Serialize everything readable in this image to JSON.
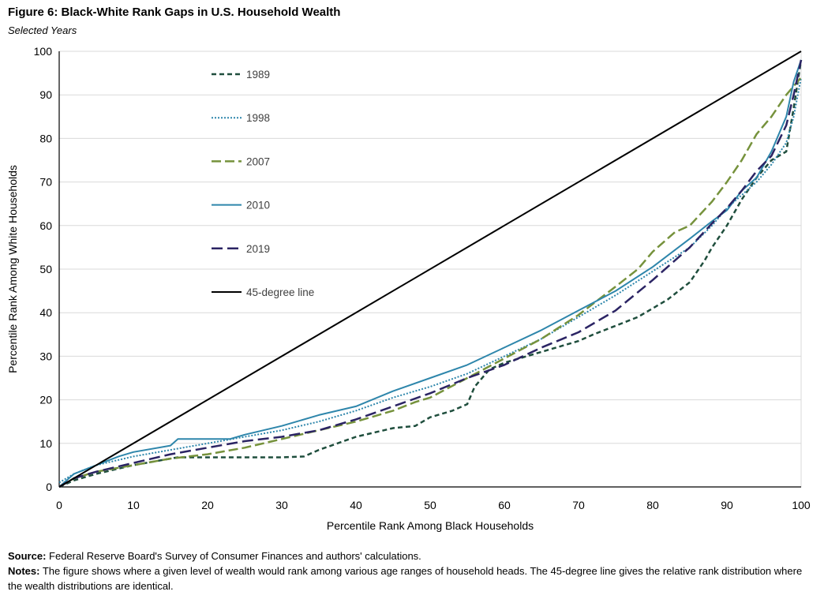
{
  "title": "Figure 6: Black-White Rank Gaps in U.S. Household Wealth",
  "subtitle": "Selected Years",
  "source_label": "Source:",
  "source_text": "Federal Reserve Board's Survey of Consumer Finances and authors' calculations.",
  "notes_label": "Notes:",
  "notes_text": "The figure shows where a given level of wealth would rank among various age ranges of household heads. The 45-degree line gives the relative rank distribution where the wealth distributions are identical.",
  "chart_data": {
    "type": "line",
    "xlabel": "Percentile Rank Among Black Households",
    "ylabel": "Percentile Rank Among White Households",
    "xlim": [
      0,
      100
    ],
    "ylim": [
      0,
      100
    ],
    "xticks": [
      "0",
      "10",
      "20",
      "30",
      "40",
      "50",
      "60",
      "70",
      "80",
      "90",
      "100"
    ],
    "yticks": [
      "0",
      "10",
      "20",
      "30",
      "40",
      "50",
      "60",
      "70",
      "80",
      "90",
      "100"
    ],
    "grid": "horizontal",
    "legend_position": "top-left",
    "series": [
      {
        "name": "1989",
        "color": "#1f4e3d",
        "dash": "6,4",
        "width": 2.5,
        "x": [
          0,
          2,
          5,
          10,
          15,
          16,
          20,
          25,
          30,
          33,
          35,
          40,
          45,
          48,
          50,
          53,
          55,
          56,
          58,
          60,
          65,
          70,
          72,
          75,
          78,
          80,
          82,
          85,
          87,
          88,
          90,
          92,
          94,
          96,
          98,
          99,
          100
        ],
        "y": [
          0,
          1.5,
          3,
          5,
          6.5,
          6.8,
          6.8,
          6.8,
          6.8,
          7,
          8.5,
          11.5,
          13.5,
          14,
          16,
          17.5,
          19,
          23,
          27,
          28.5,
          31,
          33.5,
          35,
          37,
          39,
          41,
          43,
          47,
          52,
          55,
          60,
          66,
          71,
          75,
          77,
          87,
          98
        ]
      },
      {
        "name": "1998",
        "color": "#2e86ab",
        "dash": "2,2",
        "width": 2,
        "x": [
          0,
          2,
          5,
          10,
          15,
          20,
          25,
          30,
          35,
          40,
          45,
          50,
          55,
          60,
          65,
          70,
          75,
          80,
          85,
          88,
          90,
          92,
          94,
          96,
          98,
          99,
          100
        ],
        "y": [
          1,
          3,
          5,
          7,
          8.5,
          10,
          11.5,
          13,
          15,
          17.5,
          20.5,
          23,
          26,
          30,
          34,
          39,
          44,
          49.5,
          55,
          60,
          64,
          67,
          70,
          74,
          79,
          85,
          94
        ]
      },
      {
        "name": "2007",
        "color": "#76923c",
        "dash": "12,5",
        "width": 2.5,
        "x": [
          0,
          2,
          5,
          10,
          15,
          20,
          25,
          30,
          35,
          40,
          45,
          48,
          50,
          55,
          60,
          65,
          70,
          75,
          78,
          80,
          83,
          85,
          88,
          90,
          92,
          94,
          96,
          98,
          99,
          100
        ],
        "y": [
          0,
          2,
          3.5,
          5,
          6.5,
          7.5,
          9,
          11,
          13,
          15,
          17.5,
          19.5,
          20.5,
          25,
          29.5,
          34,
          39.5,
          46,
          50,
          54,
          58.5,
          60,
          65.5,
          70,
          75,
          81,
          85,
          90,
          92,
          94
        ]
      },
      {
        "name": "2010",
        "color": "#2e86ab",
        "dash": "",
        "width": 2,
        "x": [
          0,
          2,
          5,
          8,
          10,
          15,
          16,
          17,
          20,
          23,
          25,
          30,
          35,
          40,
          45,
          50,
          55,
          60,
          65,
          70,
          75,
          80,
          85,
          88,
          90,
          92,
          94,
          96,
          98,
          99,
          100
        ],
        "y": [
          0,
          3,
          5,
          7,
          8,
          9.5,
          11,
          11,
          11,
          11,
          12,
          14,
          16.5,
          18.5,
          22,
          25,
          28,
          32,
          36,
          40.5,
          45,
          50.5,
          57,
          61,
          63.5,
          68,
          71,
          77,
          85,
          93,
          98
        ]
      },
      {
        "name": "2019",
        "color": "#2b2464",
        "dash": "14,6",
        "width": 2.5,
        "x": [
          0,
          2,
          5,
          10,
          15,
          20,
          25,
          30,
          35,
          40,
          45,
          50,
          55,
          60,
          65,
          70,
          75,
          80,
          85,
          88,
          90,
          92,
          94,
          96,
          98,
          99,
          100
        ],
        "y": [
          0,
          2,
          3.5,
          5.5,
          7.5,
          9,
          10.5,
          11.5,
          13,
          15.5,
          18.5,
          21.5,
          25,
          28,
          32,
          35.5,
          40.5,
          47.5,
          55,
          60.5,
          64,
          68,
          72.5,
          76,
          83,
          90,
          98
        ]
      },
      {
        "name": "45-degree line",
        "color": "#000000",
        "dash": "",
        "width": 2,
        "x": [
          0,
          100
        ],
        "y": [
          0,
          100
        ]
      }
    ]
  }
}
